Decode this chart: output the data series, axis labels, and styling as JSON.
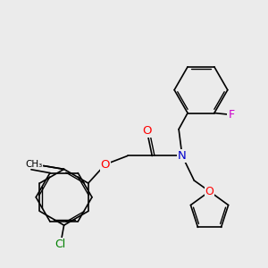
{
  "background_color": "#ebebeb",
  "bond_color": "#000000",
  "atom_colors": {
    "O": "#ff0000",
    "N": "#0000cc",
    "Cl": "#008000",
    "F": "#cc00cc"
  },
  "figsize": [
    3.0,
    3.0
  ],
  "dpi": 100
}
